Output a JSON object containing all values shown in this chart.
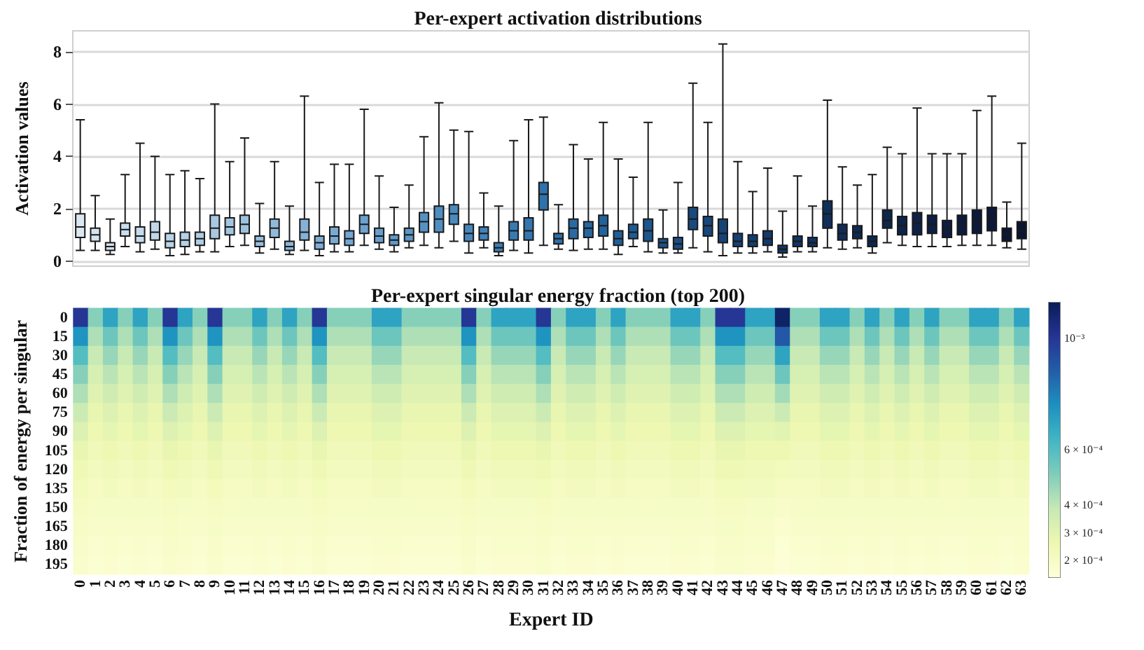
{
  "chart_data": [
    {
      "type": "box",
      "title": "Per-expert activation distributions",
      "ylabel": "Activation values",
      "categories": [
        "0",
        "1",
        "2",
        "3",
        "4",
        "5",
        "6",
        "7",
        "8",
        "9",
        "10",
        "11",
        "12",
        "13",
        "14",
        "15",
        "16",
        "17",
        "18",
        "19",
        "20",
        "21",
        "22",
        "23",
        "24",
        "25",
        "26",
        "27",
        "28",
        "29",
        "30",
        "31",
        "32",
        "33",
        "34",
        "35",
        "36",
        "37",
        "38",
        "39",
        "40",
        "41",
        "42",
        "43",
        "44",
        "45",
        "46",
        "47",
        "48",
        "49",
        "50",
        "51",
        "52",
        "53",
        "54",
        "55",
        "56",
        "57",
        "58",
        "59",
        "60",
        "61",
        "62",
        "63"
      ],
      "boxes": [
        {
          "low": 0.4,
          "q1": 0.9,
          "median": 1.3,
          "q3": 1.8,
          "high": 5.4
        },
        {
          "low": 0.4,
          "q1": 0.75,
          "median": 1.0,
          "q3": 1.25,
          "high": 2.5
        },
        {
          "low": 0.25,
          "q1": 0.4,
          "median": 0.55,
          "q3": 0.7,
          "high": 1.6
        },
        {
          "low": 0.55,
          "q1": 0.95,
          "median": 1.2,
          "q3": 1.45,
          "high": 3.3
        },
        {
          "low": 0.35,
          "q1": 0.7,
          "median": 0.95,
          "q3": 1.3,
          "high": 4.5
        },
        {
          "low": 0.45,
          "q1": 0.8,
          "median": 1.1,
          "q3": 1.5,
          "high": 4.0
        },
        {
          "low": 0.2,
          "q1": 0.5,
          "median": 0.75,
          "q3": 1.05,
          "high": 3.3
        },
        {
          "low": 0.25,
          "q1": 0.55,
          "median": 0.8,
          "q3": 1.1,
          "high": 3.45
        },
        {
          "low": 0.35,
          "q1": 0.6,
          "median": 0.85,
          "q3": 1.1,
          "high": 3.15
        },
        {
          "low": 0.35,
          "q1": 0.85,
          "median": 1.25,
          "q3": 1.75,
          "high": 6.0
        },
        {
          "low": 0.55,
          "q1": 1.0,
          "median": 1.3,
          "q3": 1.65,
          "high": 3.8
        },
        {
          "low": 0.6,
          "q1": 1.05,
          "median": 1.4,
          "q3": 1.75,
          "high": 4.7
        },
        {
          "low": 0.3,
          "q1": 0.55,
          "median": 0.75,
          "q3": 0.95,
          "high": 2.2
        },
        {
          "low": 0.45,
          "q1": 0.9,
          "median": 1.25,
          "q3": 1.6,
          "high": 3.8
        },
        {
          "low": 0.25,
          "q1": 0.4,
          "median": 0.55,
          "q3": 0.75,
          "high": 2.1
        },
        {
          "low": 0.4,
          "q1": 0.8,
          "median": 1.1,
          "q3": 1.6,
          "high": 6.3
        },
        {
          "low": 0.2,
          "q1": 0.45,
          "median": 0.7,
          "q3": 0.95,
          "high": 3.0
        },
        {
          "low": 0.35,
          "q1": 0.65,
          "median": 0.95,
          "q3": 1.3,
          "high": 3.7
        },
        {
          "low": 0.35,
          "q1": 0.6,
          "median": 0.85,
          "q3": 1.15,
          "high": 3.7
        },
        {
          "low": 0.6,
          "q1": 1.05,
          "median": 1.4,
          "q3": 1.75,
          "high": 5.8
        },
        {
          "low": 0.45,
          "q1": 0.7,
          "median": 0.95,
          "q3": 1.25,
          "high": 3.25
        },
        {
          "low": 0.35,
          "q1": 0.6,
          "median": 0.8,
          "q3": 1.0,
          "high": 2.05
        },
        {
          "low": 0.5,
          "q1": 0.75,
          "median": 1.0,
          "q3": 1.25,
          "high": 2.9
        },
        {
          "low": 0.6,
          "q1": 1.1,
          "median": 1.5,
          "q3": 1.85,
          "high": 4.75
        },
        {
          "low": 0.5,
          "q1": 1.1,
          "median": 1.6,
          "q3": 2.1,
          "high": 6.05
        },
        {
          "low": 0.75,
          "q1": 1.4,
          "median": 1.8,
          "q3": 2.15,
          "high": 5.0
        },
        {
          "low": 0.3,
          "q1": 0.75,
          "median": 1.05,
          "q3": 1.4,
          "high": 4.95
        },
        {
          "low": 0.5,
          "q1": 0.8,
          "median": 1.05,
          "q3": 1.3,
          "high": 2.6
        },
        {
          "low": 0.2,
          "q1": 0.35,
          "median": 0.5,
          "q3": 0.7,
          "high": 2.1
        },
        {
          "low": 0.4,
          "q1": 0.8,
          "median": 1.15,
          "q3": 1.5,
          "high": 4.6
        },
        {
          "low": 0.3,
          "q1": 0.8,
          "median": 1.15,
          "q3": 1.65,
          "high": 5.4
        },
        {
          "low": 0.6,
          "q1": 1.95,
          "median": 2.55,
          "q3": 3.0,
          "high": 5.5
        },
        {
          "low": 0.45,
          "q1": 0.65,
          "median": 0.85,
          "q3": 1.05,
          "high": 2.15
        },
        {
          "low": 0.4,
          "q1": 0.85,
          "median": 1.25,
          "q3": 1.6,
          "high": 4.45
        },
        {
          "low": 0.45,
          "q1": 0.9,
          "median": 1.25,
          "q3": 1.5,
          "high": 3.9
        },
        {
          "low": 0.45,
          "q1": 0.95,
          "median": 1.35,
          "q3": 1.75,
          "high": 5.3
        },
        {
          "low": 0.25,
          "q1": 0.6,
          "median": 0.85,
          "q3": 1.15,
          "high": 3.9
        },
        {
          "low": 0.55,
          "q1": 0.85,
          "median": 1.1,
          "q3": 1.4,
          "high": 3.2
        },
        {
          "low": 0.35,
          "q1": 0.75,
          "median": 1.15,
          "q3": 1.6,
          "high": 5.3
        },
        {
          "low": 0.3,
          "q1": 0.5,
          "median": 0.7,
          "q3": 0.85,
          "high": 1.95
        },
        {
          "low": 0.3,
          "q1": 0.45,
          "median": 0.65,
          "q3": 0.9,
          "high": 3.0
        },
        {
          "low": 0.5,
          "q1": 1.2,
          "median": 1.6,
          "q3": 2.05,
          "high": 6.8
        },
        {
          "low": 0.35,
          "q1": 0.95,
          "median": 1.35,
          "q3": 1.7,
          "high": 5.3
        },
        {
          "low": 0.2,
          "q1": 0.7,
          "median": 1.05,
          "q3": 1.6,
          "high": 8.3
        },
        {
          "low": 0.3,
          "q1": 0.55,
          "median": 0.75,
          "q3": 1.05,
          "high": 3.8
        },
        {
          "low": 0.3,
          "q1": 0.55,
          "median": 0.75,
          "q3": 1.0,
          "high": 2.65
        },
        {
          "low": 0.35,
          "q1": 0.6,
          "median": 0.85,
          "q3": 1.15,
          "high": 3.55
        },
        {
          "low": 0.15,
          "q1": 0.3,
          "median": 0.45,
          "q3": 0.6,
          "high": 1.9
        },
        {
          "low": 0.35,
          "q1": 0.55,
          "median": 0.75,
          "q3": 0.95,
          "high": 3.25
        },
        {
          "low": 0.35,
          "q1": 0.55,
          "median": 0.7,
          "q3": 0.9,
          "high": 2.1
        },
        {
          "low": 0.5,
          "q1": 1.25,
          "median": 1.8,
          "q3": 2.3,
          "high": 6.15
        },
        {
          "low": 0.45,
          "q1": 0.8,
          "median": 1.05,
          "q3": 1.4,
          "high": 3.6
        },
        {
          "low": 0.5,
          "q1": 0.85,
          "median": 1.1,
          "q3": 1.35,
          "high": 2.9
        },
        {
          "low": 0.3,
          "q1": 0.55,
          "median": 0.75,
          "q3": 0.95,
          "high": 3.3
        },
        {
          "low": 0.7,
          "q1": 1.25,
          "median": 1.55,
          "q3": 1.95,
          "high": 4.35
        },
        {
          "low": 0.6,
          "q1": 1.0,
          "median": 1.35,
          "q3": 1.7,
          "high": 4.1
        },
        {
          "low": 0.55,
          "q1": 1.0,
          "median": 1.45,
          "q3": 1.85,
          "high": 5.85
        },
        {
          "low": 0.55,
          "q1": 1.05,
          "median": 1.4,
          "q3": 1.75,
          "high": 4.1
        },
        {
          "low": 0.55,
          "q1": 0.9,
          "median": 1.25,
          "q3": 1.55,
          "high": 4.1
        },
        {
          "low": 0.6,
          "q1": 1.0,
          "median": 1.4,
          "q3": 1.75,
          "high": 4.1
        },
        {
          "low": 0.6,
          "q1": 1.05,
          "median": 1.5,
          "q3": 1.95,
          "high": 5.75
        },
        {
          "low": 0.6,
          "q1": 1.15,
          "median": 1.6,
          "q3": 2.05,
          "high": 6.3
        },
        {
          "low": 0.5,
          "q1": 0.75,
          "median": 1.0,
          "q3": 1.25,
          "high": 2.25
        },
        {
          "low": 0.45,
          "q1": 0.85,
          "median": 1.15,
          "q3": 1.5,
          "high": 4.5
        }
      ],
      "colors": [
        "#dbe7f1",
        "#d6e4f0",
        "#d1e1ee",
        "#cbdeed",
        "#c6dbeb",
        "#c0d7e9",
        "#bbd4e8",
        "#b5d1e6",
        "#afcde4",
        "#a9c9e2",
        "#a3c6e0",
        "#9dc2de",
        "#97bedc",
        "#91bada",
        "#8bb6d8",
        "#85b2d6",
        "#7faed4",
        "#79aad2",
        "#73a6d0",
        "#6da2ce",
        "#679ecb",
        "#619ac9",
        "#5b96c6",
        "#5592c3",
        "#508ec1",
        "#4b8abe",
        "#4686bb",
        "#4182b8",
        "#3c7eb5",
        "#387ab2",
        "#3476ae",
        "#3072ab",
        "#2d6ea7",
        "#2a6aa3",
        "#27669f",
        "#24629b",
        "#215e97",
        "#1f5a92",
        "#1d568e",
        "#1b5289",
        "#194e84",
        "#184a7f",
        "#17477b",
        "#164376",
        "#154072",
        "#143d6e",
        "#133a6a",
        "#123766",
        "#113462",
        "#11315e",
        "#102e5a",
        "#102c56",
        "#0f2952",
        "#0f274f",
        "#0e254c",
        "#0e2349",
        "#0e2146",
        "#0d1f43",
        "#0d1d40",
        "#0d1b3d",
        "#0c193a",
        "#0c1837",
        "#0c1634",
        "#0b1531"
      ],
      "ylim": [
        -0.2,
        8.8
      ],
      "yticks": [
        0,
        2,
        4,
        6,
        8
      ],
      "grid": "y",
      "tick_labels": "y"
    },
    {
      "type": "heatmap",
      "title": "Per-expert singular energy fraction (top 200)",
      "xlabel": "Expert ID",
      "ylabel": "Fraction of energy per singular",
      "categories": [
        "0",
        "1",
        "2",
        "3",
        "4",
        "5",
        "6",
        "7",
        "8",
        "9",
        "10",
        "11",
        "12",
        "13",
        "14",
        "15",
        "16",
        "17",
        "18",
        "19",
        "20",
        "21",
        "22",
        "23",
        "24",
        "25",
        "26",
        "27",
        "28",
        "29",
        "30",
        "31",
        "32",
        "33",
        "34",
        "35",
        "36",
        "37",
        "38",
        "39",
        "40",
        "41",
        "42",
        "43",
        "44",
        "45",
        "46",
        "47",
        "48",
        "49",
        "50",
        "51",
        "52",
        "53",
        "54",
        "55",
        "56",
        "57",
        "58",
        "59",
        "60",
        "61",
        "62",
        "63"
      ],
      "y_categories": [
        "0",
        "15",
        "30",
        "45",
        "60",
        "75",
        "90",
        "105",
        "120",
        "135",
        "150",
        "165",
        "180",
        "195"
      ],
      "cells": [
        [
          0.001,
          0.0005,
          0.0007,
          0.0005,
          0.0007,
          0.0005,
          0.001,
          0.0007,
          0.0005,
          0.001,
          0.0005,
          0.0005,
          0.0007,
          0.0005,
          0.0007,
          0.0005,
          0.001,
          0.0005,
          0.0005,
          0.0005,
          0.0007,
          0.0007,
          0.0005,
          0.0005,
          0.0005,
          0.0005,
          0.001,
          0.0005,
          0.0007,
          0.0007,
          0.0007,
          0.001,
          0.0005,
          0.0007,
          0.0007,
          0.0005,
          0.0007,
          0.0005,
          0.0005,
          0.0005,
          0.0007,
          0.0007,
          0.0005,
          0.001,
          0.001,
          0.0007,
          0.0007,
          0.0011,
          0.0005,
          0.0005,
          0.0007,
          0.0007,
          0.0005,
          0.0007,
          0.0005,
          0.0007,
          0.0005,
          0.0007,
          0.0005,
          0.0005,
          0.0007,
          0.0007,
          0.0005,
          0.0007
        ],
        [
          0.00075,
          0.00043,
          0.00055,
          0.00043,
          0.00055,
          0.00043,
          0.00075,
          0.00055,
          0.00043,
          0.00075,
          0.00043,
          0.00043,
          0.00055,
          0.00043,
          0.00055,
          0.00043,
          0.00075,
          0.00043,
          0.00043,
          0.00043,
          0.00055,
          0.00055,
          0.00043,
          0.00043,
          0.00043,
          0.00043,
          0.00075,
          0.00043,
          0.00055,
          0.00055,
          0.00055,
          0.00075,
          0.00043,
          0.00055,
          0.00055,
          0.00043,
          0.00055,
          0.00043,
          0.00043,
          0.00043,
          0.00055,
          0.00055,
          0.00043,
          0.00075,
          0.00075,
          0.00055,
          0.00055,
          0.0009,
          0.00043,
          0.00043,
          0.00055,
          0.00055,
          0.00043,
          0.00055,
          0.00043,
          0.00055,
          0.00043,
          0.00055,
          0.00043,
          0.00043,
          0.00055,
          0.00055,
          0.00043,
          0.00055
        ],
        [
          0.0006,
          0.00038,
          0.00047,
          0.00038,
          0.00047,
          0.00038,
          0.0006,
          0.00047,
          0.00038,
          0.0006,
          0.00038,
          0.00038,
          0.00047,
          0.00038,
          0.00047,
          0.00038,
          0.0006,
          0.00038,
          0.00038,
          0.00038,
          0.00047,
          0.00047,
          0.00038,
          0.00038,
          0.00038,
          0.00038,
          0.0006,
          0.00038,
          0.00047,
          0.00047,
          0.00047,
          0.0006,
          0.00038,
          0.00047,
          0.00047,
          0.00038,
          0.00047,
          0.00038,
          0.00038,
          0.00038,
          0.00047,
          0.00047,
          0.00038,
          0.0006,
          0.0006,
          0.00047,
          0.00047,
          0.0007,
          0.00038,
          0.00038,
          0.00047,
          0.00047,
          0.00038,
          0.00047,
          0.00038,
          0.00047,
          0.00038,
          0.00047,
          0.00038,
          0.00038,
          0.00047,
          0.00047,
          0.00038,
          0.00047
        ],
        [
          0.0005,
          0.00034,
          0.00041,
          0.00034,
          0.00041,
          0.00034,
          0.0005,
          0.00041,
          0.00034,
          0.0005,
          0.00034,
          0.00034,
          0.00041,
          0.00034,
          0.00041,
          0.00034,
          0.0005,
          0.00034,
          0.00034,
          0.00034,
          0.00041,
          0.00041,
          0.00034,
          0.00034,
          0.00034,
          0.00034,
          0.0005,
          0.00034,
          0.00041,
          0.00041,
          0.00041,
          0.0005,
          0.00034,
          0.00041,
          0.00041,
          0.00034,
          0.00041,
          0.00034,
          0.00034,
          0.00034,
          0.00041,
          0.00041,
          0.00034,
          0.0005,
          0.0005,
          0.00041,
          0.00041,
          0.00055,
          0.00034,
          0.00034,
          0.00041,
          0.00041,
          0.00034,
          0.00041,
          0.00034,
          0.00041,
          0.00034,
          0.00041,
          0.00034,
          0.00034,
          0.00041,
          0.00041,
          0.00034,
          0.00041
        ],
        [
          0.00043,
          0.00031,
          0.00036,
          0.00031,
          0.00036,
          0.00031,
          0.00043,
          0.00036,
          0.00031,
          0.00043,
          0.00031,
          0.00031,
          0.00036,
          0.00031,
          0.00036,
          0.00031,
          0.00043,
          0.00031,
          0.00031,
          0.00031,
          0.00036,
          0.00036,
          0.00031,
          0.00031,
          0.00031,
          0.00031,
          0.00043,
          0.00031,
          0.00036,
          0.00036,
          0.00036,
          0.00043,
          0.00031,
          0.00036,
          0.00036,
          0.00031,
          0.00036,
          0.00031,
          0.00031,
          0.00031,
          0.00036,
          0.00036,
          0.00031,
          0.00043,
          0.00043,
          0.00036,
          0.00036,
          0.00045,
          0.00031,
          0.00031,
          0.00036,
          0.00036,
          0.00031,
          0.00036,
          0.00031,
          0.00036,
          0.00031,
          0.00036,
          0.00031,
          0.00031,
          0.00036,
          0.00036,
          0.00031,
          0.00036
        ],
        [
          0.00037,
          0.00028,
          0.00032,
          0.00028,
          0.00032,
          0.00028,
          0.00037,
          0.00032,
          0.00028,
          0.00037,
          0.00028,
          0.00028,
          0.00032,
          0.00028,
          0.00032,
          0.00028,
          0.00037,
          0.00028,
          0.00028,
          0.00028,
          0.00032,
          0.00032,
          0.00028,
          0.00028,
          0.00028,
          0.00028,
          0.00037,
          0.00028,
          0.00032,
          0.00032,
          0.00032,
          0.00037,
          0.00028,
          0.00032,
          0.00032,
          0.00028,
          0.00032,
          0.00028,
          0.00028,
          0.00028,
          0.00032,
          0.00032,
          0.00028,
          0.00037,
          0.00037,
          0.00032,
          0.00032,
          0.00037,
          0.00028,
          0.00028,
          0.00032,
          0.00032,
          0.00028,
          0.00032,
          0.00028,
          0.00032,
          0.00028,
          0.00032,
          0.00028,
          0.00028,
          0.00032,
          0.00032,
          0.00028,
          0.00032
        ],
        [
          0.00032,
          0.00026,
          0.00029,
          0.00026,
          0.00029,
          0.00026,
          0.00032,
          0.00029,
          0.00026,
          0.00032,
          0.00026,
          0.00026,
          0.00029,
          0.00026,
          0.00029,
          0.00026,
          0.00032,
          0.00026,
          0.00026,
          0.00026,
          0.00029,
          0.00029,
          0.00026,
          0.00026,
          0.00026,
          0.00026,
          0.00032,
          0.00026,
          0.00029,
          0.00029,
          0.00029,
          0.00032,
          0.00026,
          0.00029,
          0.00029,
          0.00026,
          0.00029,
          0.00026,
          0.00026,
          0.00026,
          0.00029,
          0.00029,
          0.00026,
          0.00032,
          0.00032,
          0.00029,
          0.00029,
          0.0003,
          0.00026,
          0.00026,
          0.00029,
          0.00029,
          0.00026,
          0.00029,
          0.00026,
          0.00029,
          0.00026,
          0.00029,
          0.00026,
          0.00026,
          0.00029,
          0.00029,
          0.00026,
          0.00029
        ],
        [
          0.00028,
          0.00024,
          0.00026,
          0.00024,
          0.00026,
          0.00024,
          0.00028,
          0.00026,
          0.00024,
          0.00028,
          0.00024,
          0.00024,
          0.00026,
          0.00024,
          0.00026,
          0.00024,
          0.00028,
          0.00024,
          0.00024,
          0.00024,
          0.00026,
          0.00026,
          0.00024,
          0.00024,
          0.00024,
          0.00024,
          0.00028,
          0.00024,
          0.00026,
          0.00026,
          0.00026,
          0.00028,
          0.00024,
          0.00026,
          0.00026,
          0.00024,
          0.00026,
          0.00024,
          0.00024,
          0.00024,
          0.00026,
          0.00026,
          0.00024,
          0.00028,
          0.00028,
          0.00026,
          0.00026,
          0.00026,
          0.00024,
          0.00024,
          0.00026,
          0.00026,
          0.00024,
          0.00026,
          0.00024,
          0.00026,
          0.00024,
          0.00026,
          0.00024,
          0.00024,
          0.00026,
          0.00026,
          0.00024,
          0.00026
        ],
        [
          0.00025,
          0.00022,
          0.00024,
          0.00022,
          0.00024,
          0.00022,
          0.00025,
          0.00024,
          0.00022,
          0.00025,
          0.00022,
          0.00022,
          0.00024,
          0.00022,
          0.00024,
          0.00022,
          0.00025,
          0.00022,
          0.00022,
          0.00022,
          0.00024,
          0.00024,
          0.00022,
          0.00022,
          0.00022,
          0.00022,
          0.00025,
          0.00022,
          0.00024,
          0.00024,
          0.00024,
          0.00025,
          0.00022,
          0.00024,
          0.00024,
          0.00022,
          0.00024,
          0.00022,
          0.00022,
          0.00022,
          0.00024,
          0.00024,
          0.00022,
          0.00025,
          0.00025,
          0.00024,
          0.00024,
          0.00023,
          0.00022,
          0.00022,
          0.00024,
          0.00024,
          0.00022,
          0.00024,
          0.00022,
          0.00024,
          0.00022,
          0.00024,
          0.00022,
          0.00022,
          0.00024,
          0.00024,
          0.00022,
          0.00024
        ],
        [
          0.00023,
          0.00021,
          0.00022,
          0.00021,
          0.00022,
          0.00021,
          0.00023,
          0.00022,
          0.00021,
          0.00023,
          0.00021,
          0.00021,
          0.00022,
          0.00021,
          0.00022,
          0.00021,
          0.00023,
          0.00021,
          0.00021,
          0.00021,
          0.00022,
          0.00022,
          0.00021,
          0.00021,
          0.00021,
          0.00021,
          0.00023,
          0.00021,
          0.00022,
          0.00022,
          0.00022,
          0.00023,
          0.00021,
          0.00022,
          0.00022,
          0.00021,
          0.00022,
          0.00021,
          0.00021,
          0.00021,
          0.00022,
          0.00022,
          0.00021,
          0.00023,
          0.00023,
          0.00022,
          0.00022,
          0.00021,
          0.00021,
          0.00021,
          0.00022,
          0.00022,
          0.00021,
          0.00022,
          0.00021,
          0.00022,
          0.00021,
          0.00022,
          0.00021,
          0.00021,
          0.00022,
          0.00022,
          0.00021,
          0.00022
        ],
        [
          0.00021,
          0.0002,
          0.0002,
          0.0002,
          0.0002,
          0.0002,
          0.00021,
          0.0002,
          0.0002,
          0.00021,
          0.0002,
          0.0002,
          0.0002,
          0.0002,
          0.0002,
          0.0002,
          0.00021,
          0.0002,
          0.0002,
          0.0002,
          0.0002,
          0.0002,
          0.0002,
          0.0002,
          0.0002,
          0.0002,
          0.00021,
          0.0002,
          0.0002,
          0.0002,
          0.0002,
          0.00021,
          0.0002,
          0.0002,
          0.0002,
          0.0002,
          0.0002,
          0.0002,
          0.0002,
          0.0002,
          0.0002,
          0.0002,
          0.0002,
          0.00021,
          0.00021,
          0.0002,
          0.0002,
          0.00019,
          0.0002,
          0.0002,
          0.0002,
          0.0002,
          0.0002,
          0.0002,
          0.0002,
          0.0002,
          0.0002,
          0.0002,
          0.0002,
          0.0002,
          0.0002,
          0.0002,
          0.0002,
          0.0002
        ],
        [
          0.0002,
          0.000185,
          0.00019,
          0.000185,
          0.00019,
          0.000185,
          0.0002,
          0.00019,
          0.000185,
          0.0002,
          0.000185,
          0.000185,
          0.00019,
          0.000185,
          0.00019,
          0.000185,
          0.0002,
          0.000185,
          0.000185,
          0.000185,
          0.00019,
          0.00019,
          0.000185,
          0.000185,
          0.000185,
          0.000185,
          0.0002,
          0.000185,
          0.00019,
          0.00019,
          0.00019,
          0.0002,
          0.000185,
          0.00019,
          0.00019,
          0.000185,
          0.00019,
          0.000185,
          0.000185,
          0.000185,
          0.00019,
          0.00019,
          0.000185,
          0.0002,
          0.0002,
          0.00019,
          0.00019,
          0.00017,
          0.000185,
          0.000185,
          0.00019,
          0.00019,
          0.000185,
          0.00019,
          0.000185,
          0.00019,
          0.000185,
          0.00019,
          0.000185,
          0.000185,
          0.00019,
          0.00019,
          0.000185,
          0.00019
        ],
        [
          0.00019,
          0.000175,
          0.00018,
          0.000175,
          0.00018,
          0.000175,
          0.00019,
          0.00018,
          0.000175,
          0.00019,
          0.000175,
          0.000175,
          0.00018,
          0.000175,
          0.00018,
          0.000175,
          0.00019,
          0.000175,
          0.000175,
          0.000175,
          0.00018,
          0.00018,
          0.000175,
          0.000175,
          0.000175,
          0.000175,
          0.00019,
          0.000175,
          0.00018,
          0.00018,
          0.00018,
          0.00019,
          0.000175,
          0.00018,
          0.00018,
          0.000175,
          0.00018,
          0.000175,
          0.000175,
          0.000175,
          0.00018,
          0.00018,
          0.000175,
          0.00019,
          0.00019,
          0.00018,
          0.00018,
          0.00016,
          0.000175,
          0.000175,
          0.00018,
          0.00018,
          0.000175,
          0.00018,
          0.000175,
          0.00018,
          0.000175,
          0.00018,
          0.000175,
          0.000175,
          0.00018,
          0.00018,
          0.000175,
          0.00018
        ],
        [
          0.00018,
          0.000165,
          0.00017,
          0.000165,
          0.00017,
          0.000165,
          0.00018,
          0.00017,
          0.000165,
          0.00018,
          0.000165,
          0.000165,
          0.00017,
          0.000165,
          0.00017,
          0.000165,
          0.00018,
          0.000165,
          0.000165,
          0.000165,
          0.00017,
          0.00017,
          0.000165,
          0.000165,
          0.000165,
          0.000165,
          0.00018,
          0.000165,
          0.00017,
          0.00017,
          0.00017,
          0.00018,
          0.000165,
          0.00017,
          0.00017,
          0.000165,
          0.00017,
          0.000165,
          0.000165,
          0.000165,
          0.00017,
          0.00017,
          0.000165,
          0.00018,
          0.00018,
          0.00017,
          0.00017,
          0.00015,
          0.000165,
          0.000165,
          0.00017,
          0.00017,
          0.000165,
          0.00017,
          0.000165,
          0.00017,
          0.000165,
          0.00017,
          0.000165,
          0.000165,
          0.00017,
          0.00017,
          0.000165,
          0.00017
        ]
      ],
      "clim": [
        0.00014,
        0.00113
      ],
      "cticks": [
        {
          "value": 0.0002,
          "label": "2 × 10⁻⁴"
        },
        {
          "value": 0.0003,
          "label": "3 × 10⁻⁴"
        },
        {
          "value": 0.0004,
          "label": "4 × 10⁻⁴"
        },
        {
          "value": 0.0005,
          "label": null
        },
        {
          "value": 0.0006,
          "label": "6 × 10⁻⁴"
        },
        {
          "value": 0.0007,
          "label": null
        },
        {
          "value": 0.0008,
          "label": null
        },
        {
          "value": 0.0009,
          "label": null
        },
        {
          "value": 0.001,
          "label": "10⁻³"
        }
      ]
    }
  ]
}
